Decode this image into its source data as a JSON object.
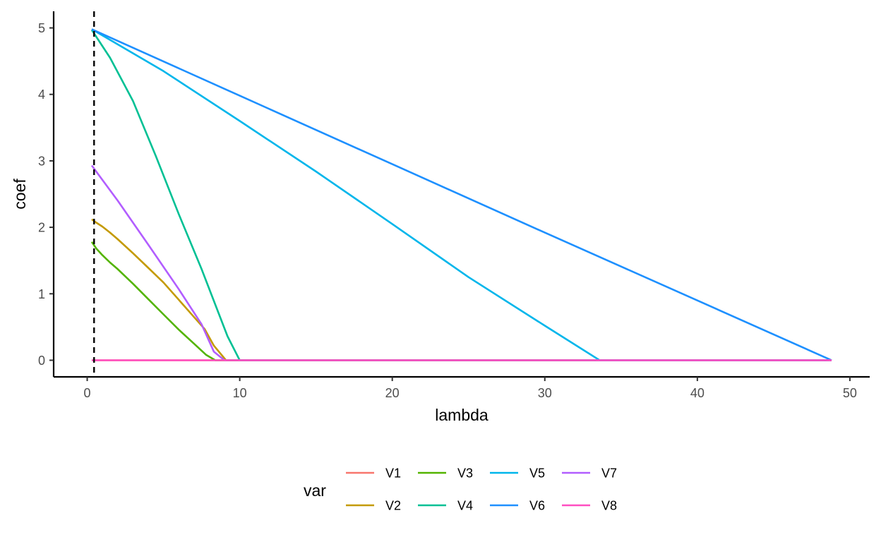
{
  "chart_data": {
    "type": "line",
    "title": "",
    "xlabel": "lambda",
    "ylabel": "coef",
    "xlim": [
      -2.2,
      51.3
    ],
    "ylim": [
      -0.25,
      5.25
    ],
    "x_ticks": [
      0,
      10,
      20,
      30,
      40,
      50
    ],
    "y_ticks": [
      0,
      1,
      2,
      3,
      4,
      5
    ],
    "vline": {
      "x": 0.45,
      "style": "dashed"
    },
    "grid": false,
    "legend": {
      "title": "var",
      "position": "bottom",
      "layout": "2 rows x 4 columns"
    },
    "series": [
      {
        "name": "V1",
        "color": "#F8766D",
        "x": [
          0.3,
          48.8
        ],
        "y": [
          0,
          0
        ]
      },
      {
        "name": "V2",
        "color": "#C49A00",
        "x": [
          0.3,
          0.6,
          1.0,
          1.5,
          2.0,
          3.0,
          4.0,
          5.0,
          6.0,
          7.0,
          7.7,
          8.3,
          9.1,
          48.8
        ],
        "y": [
          2.12,
          2.07,
          2.01,
          1.92,
          1.82,
          1.61,
          1.39,
          1.17,
          0.91,
          0.65,
          0.47,
          0.22,
          0,
          0
        ]
      },
      {
        "name": "V3",
        "color": "#53B400",
        "x": [
          0.3,
          0.6,
          1.0,
          1.5,
          2.0,
          3.0,
          4.0,
          5.0,
          6.0,
          7.0,
          7.8,
          8.4,
          48.8
        ],
        "y": [
          1.78,
          1.68,
          1.58,
          1.47,
          1.37,
          1.15,
          0.92,
          0.69,
          0.46,
          0.25,
          0.08,
          0,
          0
        ]
      },
      {
        "name": "V4",
        "color": "#00C094",
        "x": [
          0.3,
          1.5,
          3.0,
          4.5,
          6.0,
          7.5,
          9.2,
          10.0,
          48.8
        ],
        "y": [
          4.97,
          4.55,
          3.9,
          3.07,
          2.2,
          1.37,
          0.36,
          0,
          0
        ]
      },
      {
        "name": "V5",
        "color": "#00B6EB",
        "x": [
          0.3,
          5.0,
          10.0,
          15.0,
          20.0,
          25.0,
          30.0,
          33.6,
          48.8
        ],
        "y": [
          4.98,
          4.35,
          3.6,
          2.84,
          2.05,
          1.25,
          0.52,
          0,
          0
        ]
      },
      {
        "name": "V6",
        "color": "#1E90FF",
        "x": [
          0.3,
          10.0,
          20.0,
          30.0,
          40.0,
          48.8
        ],
        "y": [
          4.98,
          3.98,
          2.95,
          1.92,
          0.9,
          0
        ]
      },
      {
        "name": "V7",
        "color": "#B25DFF",
        "x": [
          0.3,
          2.0,
          4.0,
          6.0,
          7.5,
          8.3,
          9.0,
          48.8
        ],
        "y": [
          2.93,
          2.4,
          1.74,
          1.07,
          0.54,
          0.13,
          0,
          0
        ]
      },
      {
        "name": "V8",
        "color": "#FF4FC1",
        "x": [
          0.3,
          48.8
        ],
        "y": [
          0,
          0
        ]
      }
    ]
  }
}
